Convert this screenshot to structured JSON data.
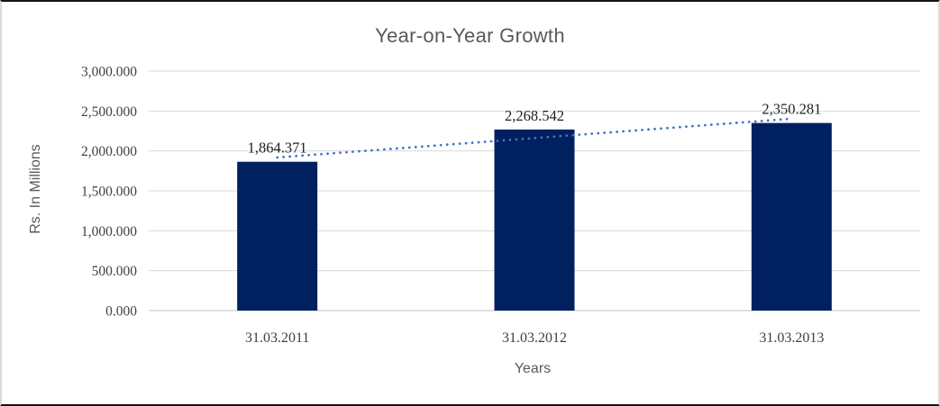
{
  "chart_data": {
    "type": "bar",
    "title": "Year-on-Year Growth",
    "xlabel": "Years",
    "ylabel": "Rs. In Millions",
    "categories": [
      "31.03.2011",
      "31.03.2012",
      "31.03.2013"
    ],
    "values": [
      1864.371,
      2268.542,
      2350.281
    ],
    "data_labels": [
      "1,864.371",
      "2,268.542",
      "2,350.281"
    ],
    "ylim": [
      0,
      3000
    ],
    "ytick_step": 500,
    "ytick_labels": [
      "0.000",
      "500.000",
      "1,000.000",
      "1,500.000",
      "2,000.000",
      "2,500.000",
      "3,000.000"
    ],
    "grid": true,
    "legend": "none",
    "trendline": {
      "type": "linear",
      "style": "dotted",
      "color": "#4472C4"
    },
    "colors": {
      "bar": "#002060",
      "gridline": "#d9d9d9",
      "axis_line": "#c3c3c3",
      "title_text": "#595959",
      "axis_title_text": "#595959",
      "tick_text": "#404040",
      "data_label_text": "#1f1f1f"
    }
  }
}
